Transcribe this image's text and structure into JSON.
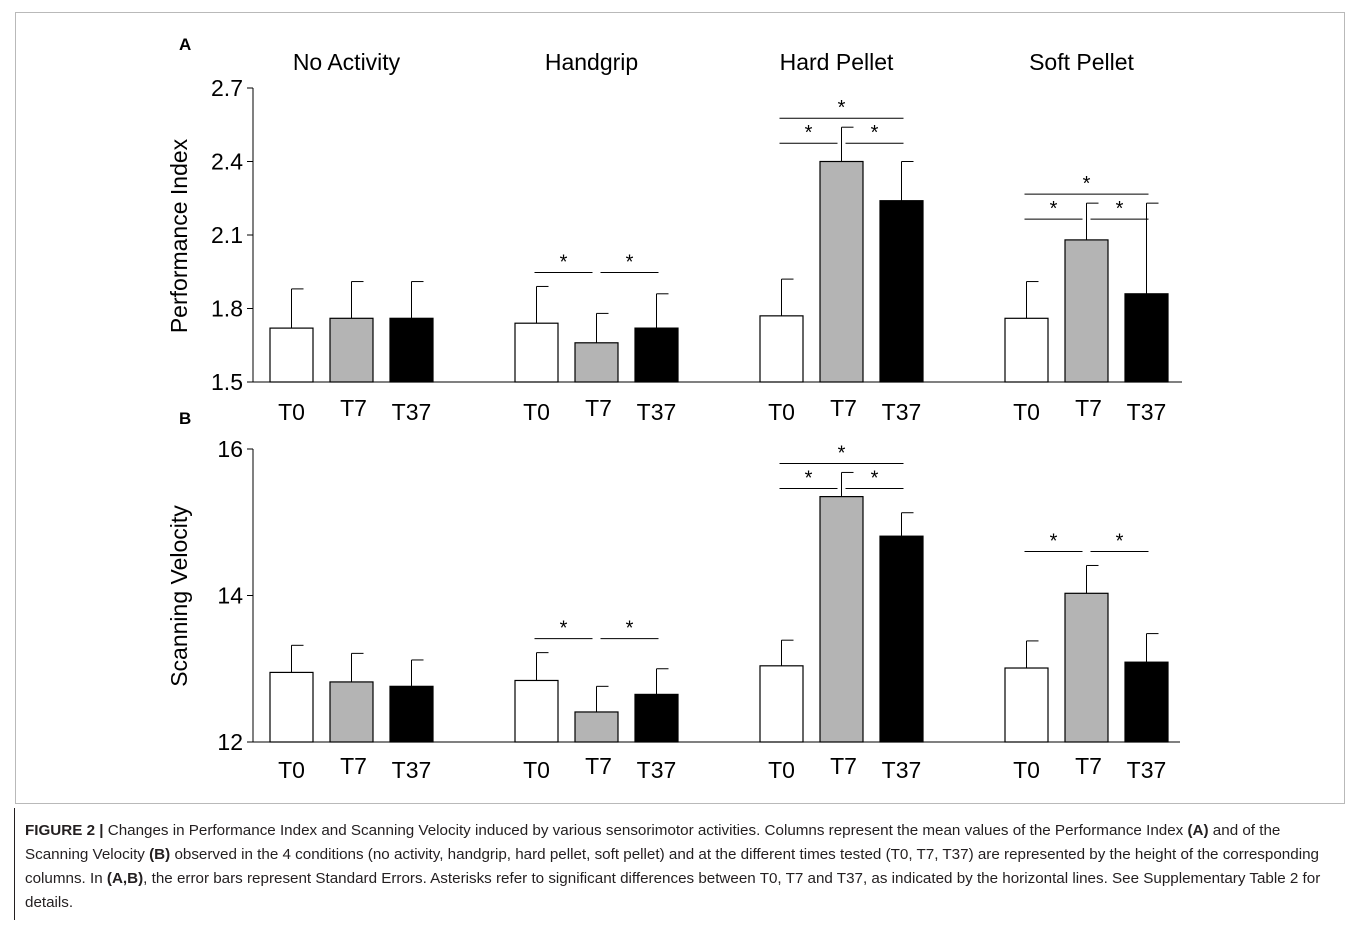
{
  "panels": [
    {
      "label": "A",
      "ylabel": "Performance Index"
    },
    {
      "label": "B",
      "ylabel": "Scanning Velocity"
    }
  ],
  "colors": {
    "T0": "#ffffff",
    "T7": "#b4b4b4",
    "T37": "#000000"
  },
  "chart_data": [
    {
      "type": "bar",
      "title": "",
      "ylabel": "Performance Index",
      "ylim": [
        1.5,
        2.7
      ],
      "yticks": [
        "1.5",
        "1.8",
        "2.1",
        "2.4",
        "2.7"
      ],
      "group_labels": [
        "No Activity",
        "Handgrip",
        "Hard Pellet",
        "Soft Pellet"
      ],
      "bar_labels": [
        "T0",
        "T7",
        "T37"
      ],
      "groups": [
        {
          "name": "No Activity",
          "values": [
            1.72,
            1.76,
            1.76
          ],
          "errors": [
            0.16,
            0.15,
            0.15
          ],
          "sig": []
        },
        {
          "name": "Handgrip",
          "values": [
            1.74,
            1.66,
            1.72
          ],
          "errors": [
            0.15,
            0.12,
            0.14
          ],
          "sig": [
            {
              "from": 0,
              "to": 1,
              "level": 0,
              "mark": "*"
            },
            {
              "from": 1,
              "to": 2,
              "level": 0,
              "mark": "*"
            }
          ]
        },
        {
          "name": "Hard Pellet",
          "values": [
            1.77,
            2.4,
            2.24
          ],
          "errors": [
            0.15,
            0.14,
            0.16
          ],
          "sig": [
            {
              "from": 0,
              "to": 1,
              "level": 0,
              "mark": "*"
            },
            {
              "from": 1,
              "to": 2,
              "level": 0,
              "mark": "*"
            },
            {
              "from": 0,
              "to": 2,
              "level": 1,
              "mark": "*"
            }
          ]
        },
        {
          "name": "Soft Pellet",
          "values": [
            1.76,
            2.08,
            1.86
          ],
          "errors": [
            0.15,
            0.15,
            0.37
          ],
          "sig": [
            {
              "from": 0,
              "to": 1,
              "level": 0,
              "mark": "*"
            },
            {
              "from": 1,
              "to": 2,
              "level": 0,
              "mark": "*"
            },
            {
              "from": 0,
              "to": 2,
              "level": 1,
              "mark": "*"
            }
          ]
        }
      ]
    },
    {
      "type": "bar",
      "title": "",
      "ylabel": "Scanning Velocity",
      "ylim": [
        12,
        16
      ],
      "yticks": [
        "12",
        "14",
        "16"
      ],
      "group_labels": [
        "No Activity",
        "Handgrip",
        "Hard Pellet",
        "Soft Pellet"
      ],
      "bar_labels": [
        "T0",
        "T7",
        "T37"
      ],
      "groups": [
        {
          "name": "No Activity",
          "values": [
            12.95,
            12.82,
            12.76
          ],
          "errors": [
            0.37,
            0.39,
            0.36
          ],
          "sig": []
        },
        {
          "name": "Handgrip",
          "values": [
            12.84,
            12.41,
            12.65
          ],
          "errors": [
            0.38,
            0.35,
            0.35
          ],
          "sig": [
            {
              "from": 0,
              "to": 1,
              "level": 0,
              "mark": "*"
            },
            {
              "from": 1,
              "to": 2,
              "level": 0,
              "mark": "*"
            }
          ]
        },
        {
          "name": "Hard Pellet",
          "values": [
            13.04,
            15.35,
            14.81
          ],
          "errors": [
            0.35,
            0.33,
            0.32
          ],
          "sig": [
            {
              "from": 0,
              "to": 1,
              "level": 0,
              "mark": "*"
            },
            {
              "from": 1,
              "to": 2,
              "level": 0,
              "mark": "*"
            },
            {
              "from": 0,
              "to": 2,
              "level": 1,
              "mark": "*"
            }
          ]
        },
        {
          "name": "Soft Pellet",
          "values": [
            13.01,
            14.03,
            13.09
          ],
          "errors": [
            0.37,
            0.38,
            0.39
          ],
          "sig": [
            {
              "from": 0,
              "to": 1,
              "level": 0,
              "mark": "*"
            },
            {
              "from": 1,
              "to": 2,
              "level": 0,
              "mark": "*"
            }
          ]
        }
      ]
    }
  ],
  "caption": {
    "figure_label": "FIGURE 2 |",
    "t1": " Changes in Performance Index and Scanning Velocity induced by various sensorimotor activities. Columns represent the mean values of the Performance Index ",
    "ref_a": "(A)",
    "t2": " and of the Scanning Velocity ",
    "ref_b": "(B)",
    "t3": " observed in the 4 conditions (no activity, handgrip, hard pellet, soft pellet) and at the different times tested (T0, T7, T37) are represented by the height of the corresponding columns. In ",
    "ref_ab": "(A,B)",
    "t4": ", the error bars represent Standard Errors. Asterisks refer to significant differences between T0, T7 and T37, as indicated by the horizontal lines. See Supplementary Table 2 for details."
  }
}
